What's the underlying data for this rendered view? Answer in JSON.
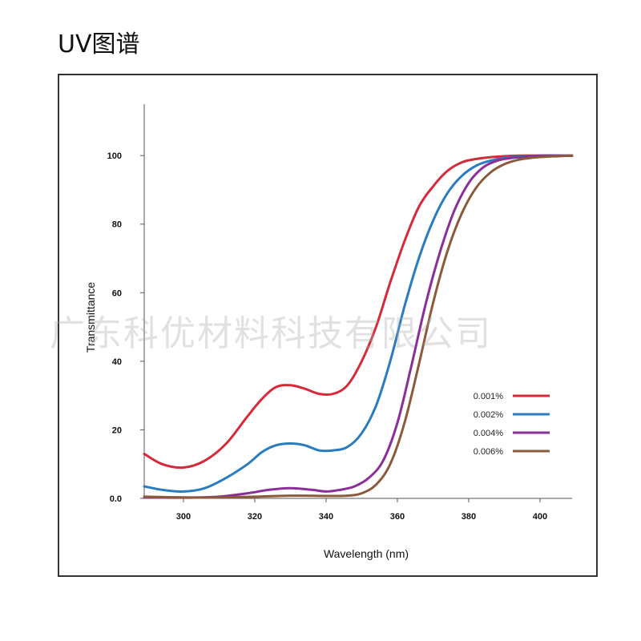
{
  "page": {
    "title": "UV图谱",
    "watermark": "广东科优材料科技有限公司"
  },
  "chart_data": {
    "type": "line",
    "xlabel": "Wavelength (nm)",
    "ylabel": "Transmittance",
    "xlim": [
      289,
      409
    ],
    "ylim": [
      0,
      115
    ],
    "xticks": [
      300,
      320,
      340,
      360,
      380,
      400
    ],
    "yticks": [
      0,
      20,
      40,
      60,
      80,
      100
    ],
    "ytick_labels": [
      "0.0",
      "20",
      "40",
      "60",
      "80",
      "100"
    ],
    "grid": false,
    "legend_position": "right",
    "series": [
      {
        "name": "0.001%",
        "color": "#d62a3a",
        "x": [
          289,
          294,
          300,
          306,
          312,
          318,
          322,
          326,
          330,
          334,
          338,
          342,
          346,
          350,
          354,
          358,
          362,
          366,
          370,
          374,
          378,
          382,
          386,
          390,
          394,
          400,
          405,
          409
        ],
        "y": [
          13,
          10,
          9,
          11,
          16,
          24,
          29,
          32.5,
          33,
          32,
          30.5,
          30.5,
          33,
          40,
          50,
          63,
          75,
          85,
          91,
          95.5,
          98,
          99,
          99.5,
          99.8,
          100,
          100,
          100,
          100
        ]
      },
      {
        "name": "0.002%",
        "color": "#2a7bbf",
        "x": [
          289,
          294,
          300,
          306,
          312,
          318,
          322,
          326,
          330,
          334,
          338,
          342,
          346,
          350,
          354,
          358,
          362,
          366,
          370,
          374,
          378,
          382,
          386,
          390,
          394,
          400,
          405,
          409
        ],
        "y": [
          3.5,
          2.5,
          2,
          3,
          6,
          10,
          13.5,
          15.5,
          16,
          15.5,
          14,
          14,
          15,
          19,
          27,
          40,
          56,
          70,
          81,
          89,
          94,
          97,
          98.5,
          99.3,
          99.7,
          100,
          100,
          100
        ]
      },
      {
        "name": "0.004%",
        "color": "#8a2f9a",
        "x": [
          289,
          300,
          310,
          318,
          324,
          330,
          336,
          340,
          344,
          348,
          352,
          356,
          360,
          364,
          368,
          372,
          376,
          380,
          384,
          388,
          392,
          396,
          400,
          405,
          409
        ],
        "y": [
          0.3,
          0.2,
          0.5,
          1.5,
          2.5,
          3,
          2.5,
          2,
          2.5,
          3.5,
          6,
          11,
          22,
          39,
          57,
          72,
          84,
          92,
          96.5,
          98.5,
          99.3,
          99.7,
          100,
          100,
          100
        ]
      },
      {
        "name": "0.006%",
        "color": "#8b5a3a",
        "x": [
          289,
          300,
          310,
          320,
          330,
          340,
          346,
          350,
          354,
          358,
          362,
          366,
          370,
          374,
          378,
          382,
          386,
          390,
          394,
          398,
          402,
          405,
          409
        ],
        "y": [
          0.5,
          0.3,
          0.3,
          0.5,
          0.8,
          0.7,
          0.8,
          1.5,
          4,
          10,
          22,
          39,
          57,
          72,
          83,
          90.5,
          95,
          97.5,
          98.8,
          99.4,
          99.7,
          99.8,
          100
        ]
      }
    ]
  }
}
